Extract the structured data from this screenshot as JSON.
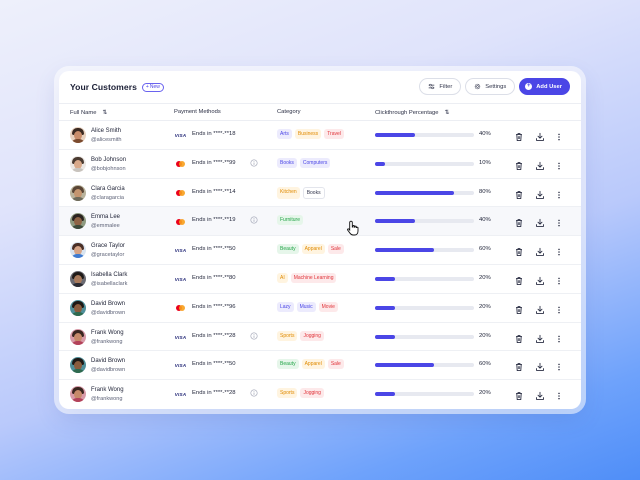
{
  "header": {
    "title": "Your Customers",
    "new_badge": "New",
    "filter_label": "Filter",
    "settings_label": "Settings",
    "add_user_label": "Add User"
  },
  "columns": {
    "full_name": "Full Name",
    "payment_methods": "Payment Methods",
    "category": "Category",
    "clickthrough": "Clickthrough Percentage"
  },
  "customers": [
    {
      "name": "Alice Smith",
      "handle": "@alicesmith",
      "card": "visa",
      "card_text": "Ends in ****-**18",
      "info": false,
      "tags": [
        {
          "label": "Arts",
          "color": "#4b46e6",
          "bg": "#ecebfd"
        },
        {
          "label": "Business",
          "color": "#e08a00",
          "bg": "#fff4e0"
        },
        {
          "label": "Travel",
          "color": "#e0343a",
          "bg": "#fde9ea"
        }
      ],
      "percent_value": 40,
      "percent": "40%",
      "avatar": {
        "skin": "#c98d6b",
        "hair": "#3b2a22",
        "shirt": "#7b4a2e",
        "bg": "#e8d2c0"
      }
    },
    {
      "name": "Bob Johnson",
      "handle": "@bobjohnson",
      "card": "mastercard",
      "card_text": "Ends in ****-**99",
      "info": true,
      "tags": [
        {
          "label": "Books",
          "color": "#4b46e6",
          "bg": "#ecebfd"
        },
        {
          "label": "Computers",
          "color": "#4b46e6",
          "bg": "#ecebfd"
        }
      ],
      "percent_value": 10,
      "percent": "10%",
      "avatar": {
        "skin": "#d9a98a",
        "hair": "#4a3a30",
        "shirt": "#c8c3bd",
        "bg": "#ece8e4"
      }
    },
    {
      "name": "Clara Garcia",
      "handle": "@claragarcia",
      "card": "mastercard",
      "card_text": "Ends in ****-**14",
      "info": false,
      "tags": [
        {
          "label": "Kitchen",
          "color": "#e08a00",
          "bg": "#fff4e0"
        },
        {
          "label": "Books",
          "color": "#30344a",
          "bg": "#ffffff"
        }
      ],
      "percent_value": 80,
      "percent": "80%",
      "avatar": {
        "skin": "#c4956f",
        "hair": "#5a4535",
        "shirt": "#6e6a5a",
        "bg": "#b9b39c"
      }
    },
    {
      "name": "Emma Lee",
      "handle": "@emmalee",
      "card": "mastercard",
      "card_text": "Ends in ****-**19",
      "info": true,
      "tags": [
        {
          "label": "Furniture",
          "color": "#22a447",
          "bg": "#e6f6ea"
        }
      ],
      "percent_value": 40,
      "percent": "40%",
      "avatar": {
        "skin": "#8f6446",
        "hair": "#2b2320",
        "shirt": "#3d4a3a",
        "bg": "#8e9a80"
      }
    },
    {
      "name": "Grace Taylor",
      "handle": "@gracetaylor",
      "card": "visa",
      "card_text": "Ends in ****-**50",
      "info": false,
      "tags": [
        {
          "label": "Beauty",
          "color": "#22a447",
          "bg": "#e6f6ea"
        },
        {
          "label": "Apparel",
          "color": "#e08a00",
          "bg": "#fff4e0"
        },
        {
          "label": "Sale",
          "color": "#e0343a",
          "bg": "#fde9ea"
        }
      ],
      "percent_value": 60,
      "percent": "60%",
      "avatar": {
        "skin": "#d6a487",
        "hair": "#4a2f26",
        "shirt": "#3f7bd0",
        "bg": "#d9e4f0"
      }
    },
    {
      "name": "Isabella Clark",
      "handle": "@isabellaclark",
      "card": "visa",
      "card_text": "Ends in ****-**80",
      "info": false,
      "tags": [
        {
          "label": "AI",
          "color": "#e08a00",
          "bg": "#fff4e0"
        },
        {
          "label": "Machine Learning",
          "color": "#e0343a",
          "bg": "#fde9ea"
        }
      ],
      "percent_value": 20,
      "percent": "20%",
      "avatar": {
        "skin": "#a87a5c",
        "hair": "#1f1a18",
        "shirt": "#2b2b33",
        "bg": "#6a6a72"
      }
    },
    {
      "name": "David Brown",
      "handle": "@davidbrown",
      "card": "mastercard",
      "card_text": "Ends in ****-**96",
      "info": false,
      "tags": [
        {
          "label": "Lazy",
          "color": "#4b46e6",
          "bg": "#ecebfd"
        },
        {
          "label": "Music",
          "color": "#4b46e6",
          "bg": "#ecebfd"
        },
        {
          "label": "Movie",
          "color": "#e0343a",
          "bg": "#fde9ea"
        }
      ],
      "percent_value": 20,
      "percent": "20%",
      "avatar": {
        "skin": "#8a5c3e",
        "hair": "#1e1916",
        "shirt": "#2f6a4f",
        "bg": "#4f8f9a"
      }
    },
    {
      "name": "Frank Wong",
      "handle": "@frankwong",
      "card": "visa",
      "card_text": "Ends in ****-**28",
      "info": true,
      "tags": [
        {
          "label": "Sports",
          "color": "#e08a00",
          "bg": "#fff4e0"
        },
        {
          "label": "Jogging",
          "color": "#e0343a",
          "bg": "#fde9ea"
        }
      ],
      "percent_value": 20,
      "percent": "20%",
      "avatar": {
        "skin": "#c78a6a",
        "hair": "#3a2620",
        "shirt": "#b3425a",
        "bg": "#d89aa8"
      }
    },
    {
      "name": "David Brown",
      "handle": "@davidbrown",
      "card": "visa",
      "card_text": "Ends in ****-**50",
      "info": false,
      "tags": [
        {
          "label": "Beauty",
          "color": "#22a447",
          "bg": "#e6f6ea"
        },
        {
          "label": "Apparel",
          "color": "#e08a00",
          "bg": "#fff4e0"
        },
        {
          "label": "Sale",
          "color": "#e0343a",
          "bg": "#fde9ea"
        }
      ],
      "percent_value": 60,
      "percent": "60%",
      "avatar": {
        "skin": "#8a5c3e",
        "hair": "#1e1916",
        "shirt": "#2f6a4f",
        "bg": "#4f8f9a"
      }
    },
    {
      "name": "Frank Wong",
      "handle": "@frankwong",
      "card": "visa",
      "card_text": "Ends in ****-**28",
      "info": true,
      "tags": [
        {
          "label": "Sports",
          "color": "#e08a00",
          "bg": "#fff4e0"
        },
        {
          "label": "Jogging",
          "color": "#e0343a",
          "bg": "#fde9ea"
        }
      ],
      "percent_value": 20,
      "percent": "20%",
      "avatar": {
        "skin": "#c78a6a",
        "hair": "#3a2620",
        "shirt": "#b3425a",
        "bg": "#d89aa8"
      }
    }
  ],
  "hovered_row": 3,
  "colors": {
    "accent": "#4b46e6"
  }
}
